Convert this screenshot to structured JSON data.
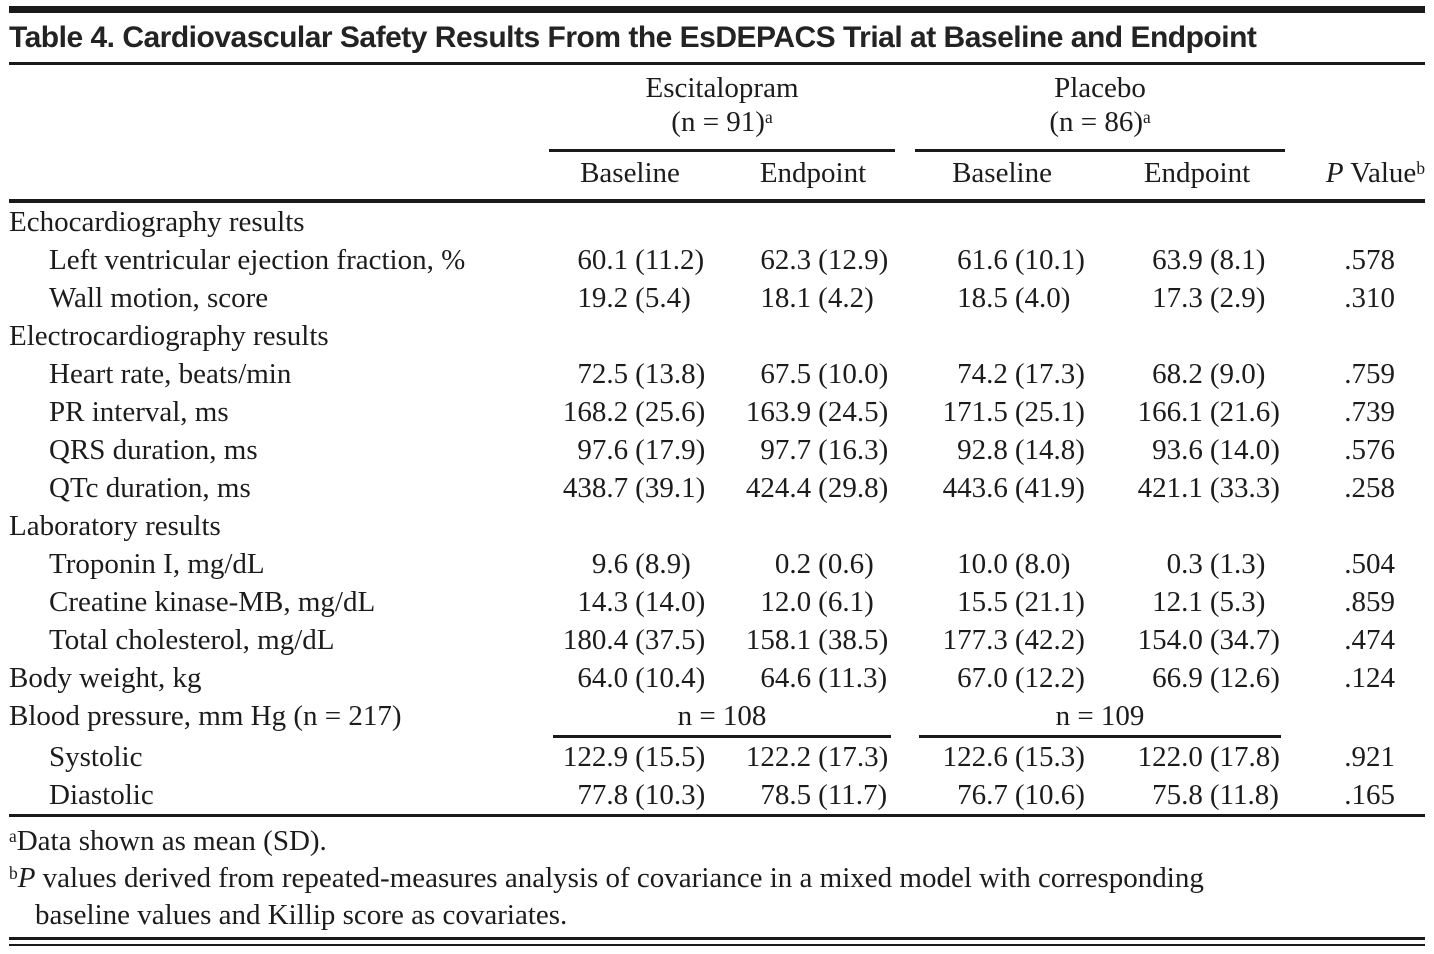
{
  "title": "Table 4. Cardiovascular Safety Results From the EsDEPACS Trial at Baseline and Endpoint",
  "columns": {
    "groups": [
      {
        "name": "Escitalopram",
        "n": "(n = 91)",
        "sup": "a"
      },
      {
        "name": "Placebo",
        "n": "(n = 86)",
        "sup": "a"
      }
    ],
    "subheaders": [
      "Baseline",
      "Endpoint",
      "Baseline",
      "Endpoint"
    ],
    "p_value": {
      "italic": "P",
      "rest": " Value",
      "sup": "b"
    }
  },
  "rows": [
    {
      "type": "section",
      "label": "Echocardiography results"
    },
    {
      "type": "data",
      "indent": true,
      "label": "Left ventricular ejection fraction, %",
      "cells": [
        {
          "mean": "60.1",
          "sd": "(11.2)"
        },
        {
          "mean": "62.3",
          "sd": "(12.9)"
        },
        {
          "mean": "61.6",
          "sd": "(10.1)"
        },
        {
          "mean": "63.9",
          "sd": "(8.1)"
        }
      ],
      "p": ".578"
    },
    {
      "type": "data",
      "indent": true,
      "label": "Wall motion, score",
      "cells": [
        {
          "mean": "19.2",
          "sd": "(5.4)"
        },
        {
          "mean": "18.1",
          "sd": "(4.2)"
        },
        {
          "mean": "18.5",
          "sd": "(4.0)"
        },
        {
          "mean": "17.3",
          "sd": "(2.9)"
        }
      ],
      "p": ".310"
    },
    {
      "type": "section",
      "label": "Electrocardiography results"
    },
    {
      "type": "data",
      "indent": true,
      "label": "Heart rate, beats/min",
      "cells": [
        {
          "mean": "72.5",
          "sd": "(13.8)"
        },
        {
          "mean": "67.5",
          "sd": "(10.0)"
        },
        {
          "mean": "74.2",
          "sd": "(17.3)"
        },
        {
          "mean": "68.2",
          "sd": "(9.0)"
        }
      ],
      "p": ".759"
    },
    {
      "type": "data",
      "indent": true,
      "label": "PR interval, ms",
      "cells": [
        {
          "mean": "168.2",
          "sd": "(25.6)"
        },
        {
          "mean": "163.9",
          "sd": "(24.5)"
        },
        {
          "mean": "171.5",
          "sd": "(25.1)"
        },
        {
          "mean": "166.1",
          "sd": "(21.6)"
        }
      ],
      "p": ".739"
    },
    {
      "type": "data",
      "indent": true,
      "label": "QRS duration, ms",
      "cells": [
        {
          "mean": "97.6",
          "sd": "(17.9)"
        },
        {
          "mean": "97.7",
          "sd": "(16.3)"
        },
        {
          "mean": "92.8",
          "sd": "(14.8)"
        },
        {
          "mean": "93.6",
          "sd": "(14.0)"
        }
      ],
      "p": ".576"
    },
    {
      "type": "data",
      "indent": true,
      "label": "QTc duration, ms",
      "cells": [
        {
          "mean": "438.7",
          "sd": "(39.1)"
        },
        {
          "mean": "424.4",
          "sd": "(29.8)"
        },
        {
          "mean": "443.6",
          "sd": "(41.9)"
        },
        {
          "mean": "421.1",
          "sd": "(33.3)"
        }
      ],
      "p": ".258"
    },
    {
      "type": "section",
      "label": "Laboratory results"
    },
    {
      "type": "data",
      "indent": true,
      "label": "Troponin I, mg/dL",
      "cells": [
        {
          "mean": "9.6",
          "sd": "(8.9)"
        },
        {
          "mean": "0.2",
          "sd": "(0.6)"
        },
        {
          "mean": "10.0",
          "sd": "(8.0)"
        },
        {
          "mean": "0.3",
          "sd": "(1.3)"
        }
      ],
      "p": ".504"
    },
    {
      "type": "data",
      "indent": true,
      "label": "Creatine kinase-MB, mg/dL",
      "cells": [
        {
          "mean": "14.3",
          "sd": "(14.0)"
        },
        {
          "mean": "12.0",
          "sd": "(6.1)"
        },
        {
          "mean": "15.5",
          "sd": "(21.1)"
        },
        {
          "mean": "12.1",
          "sd": "(5.3)"
        }
      ],
      "p": ".859"
    },
    {
      "type": "data",
      "indent": true,
      "label": "Total cholesterol, mg/dL",
      "cells": [
        {
          "mean": "180.4",
          "sd": "(37.5)"
        },
        {
          "mean": "158.1",
          "sd": "(38.5)"
        },
        {
          "mean": "177.3",
          "sd": "(42.2)"
        },
        {
          "mean": "154.0",
          "sd": "(34.7)"
        }
      ],
      "p": ".474"
    },
    {
      "type": "data",
      "indent": false,
      "label": "Body weight, kg",
      "cells": [
        {
          "mean": "64.0",
          "sd": "(10.4)"
        },
        {
          "mean": "64.6",
          "sd": "(11.3)"
        },
        {
          "mean": "67.0",
          "sd": "(12.2)"
        },
        {
          "mean": "66.9",
          "sd": "(12.6)"
        }
      ],
      "p": ".124"
    },
    {
      "type": "subspan",
      "label": "Blood pressure, mm Hg (n = 217)",
      "spans": [
        "n = 108",
        "n = 109"
      ]
    },
    {
      "type": "data",
      "indent": true,
      "label": "Systolic",
      "cells": [
        {
          "mean": "122.9",
          "sd": "(15.5)"
        },
        {
          "mean": "122.2",
          "sd": "(17.3)"
        },
        {
          "mean": "122.6",
          "sd": "(15.3)"
        },
        {
          "mean": "122.0",
          "sd": "(17.8)"
        }
      ],
      "p": ".921"
    },
    {
      "type": "data",
      "indent": true,
      "label": "Diastolic",
      "cells": [
        {
          "mean": "77.8",
          "sd": "(10.3)"
        },
        {
          "mean": "78.5",
          "sd": "(11.7)"
        },
        {
          "mean": "76.7",
          "sd": "(10.6)"
        },
        {
          "mean": "75.8",
          "sd": "(11.8)"
        }
      ],
      "p": ".165"
    }
  ],
  "footnotes": [
    {
      "sup": "a",
      "italic": "",
      "text": "Data shown as mean (SD).",
      "text_line2": ""
    },
    {
      "sup": "b",
      "italic": "P",
      "text": " values derived from repeated-measures analysis of covariance in a mixed model with corresponding",
      "text_line2": "baseline values and Killip score as covariates."
    }
  ]
}
